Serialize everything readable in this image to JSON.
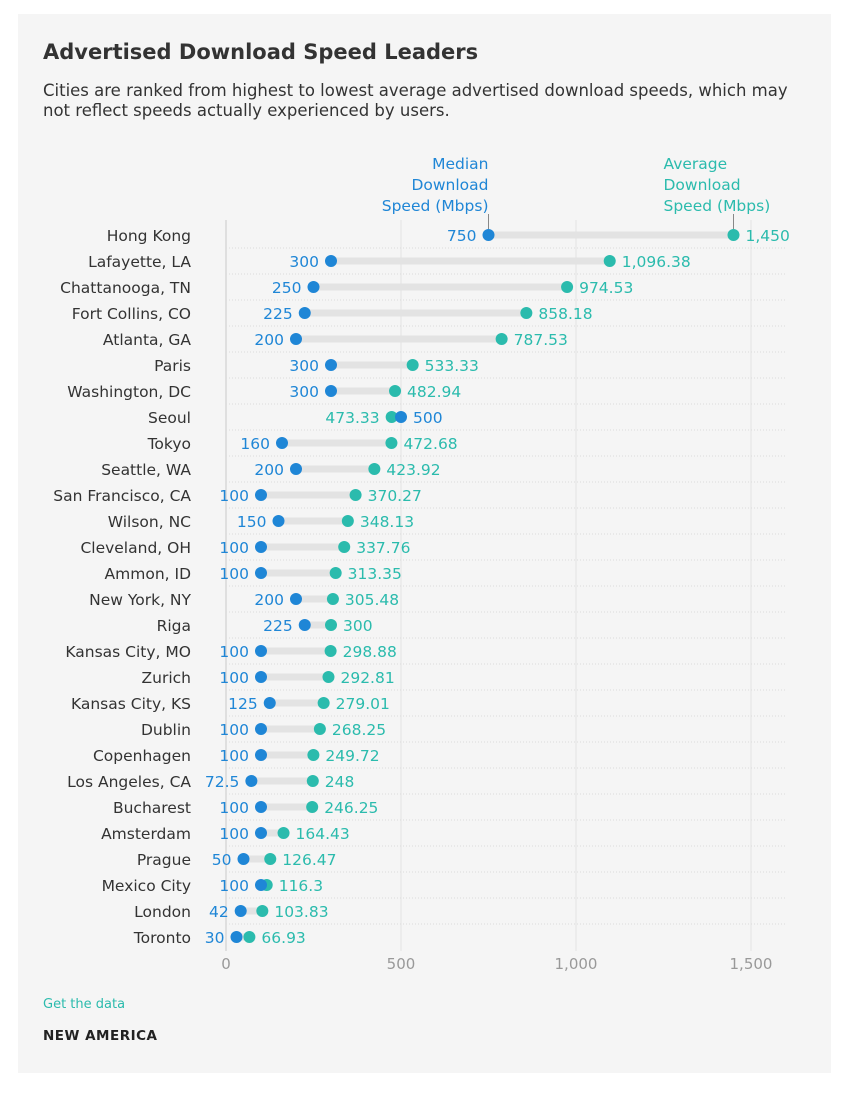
{
  "header": {
    "title": "Advertised Download Speed Leaders",
    "subtitle": "Cities are ranked from highest to lowest average advertised download speeds, which may not reflect speeds actually experienced by users."
  },
  "footer": {
    "link_label": "Get the data",
    "brand": "NEW AMERICA"
  },
  "colors": {
    "median": "#1f86d6",
    "average": "#2bbbad",
    "connector": "#e3e3e3",
    "text": "#333333",
    "axis": "#999999"
  },
  "chart_data": {
    "type": "dumbbell",
    "x_range": [
      0,
      1600
    ],
    "x_ticks": [
      {
        "value": 0,
        "label": "0"
      },
      {
        "value": 500,
        "label": "500"
      },
      {
        "value": 1000,
        "label": "1,000"
      },
      {
        "value": 1500,
        "label": "1,500"
      }
    ],
    "grid": true,
    "series": [
      {
        "key": "median",
        "name": "Median Download Speed (Mbps)",
        "name_lines": [
          "Median",
          "Download",
          "Speed (Mbps)"
        ]
      },
      {
        "key": "average",
        "name": "Average Download Speed (Mbps)",
        "name_lines": [
          "Average",
          "Download",
          "Speed (Mbps)"
        ]
      }
    ],
    "rows": [
      {
        "city": "Hong Kong",
        "median": 750,
        "median_label": "750",
        "average": 1450,
        "average_label": "1,450"
      },
      {
        "city": "Lafayette, LA",
        "median": 300,
        "median_label": "300",
        "average": 1096.38,
        "average_label": "1,096.38"
      },
      {
        "city": "Chattanooga, TN",
        "median": 250,
        "median_label": "250",
        "average": 974.53,
        "average_label": "974.53"
      },
      {
        "city": "Fort Collins, CO",
        "median": 225,
        "median_label": "225",
        "average": 858.18,
        "average_label": "858.18"
      },
      {
        "city": "Atlanta, GA",
        "median": 200,
        "median_label": "200",
        "average": 787.53,
        "average_label": "787.53"
      },
      {
        "city": "Paris",
        "median": 300,
        "median_label": "300",
        "average": 533.33,
        "average_label": "533.33"
      },
      {
        "city": "Washington, DC",
        "median": 300,
        "median_label": "300",
        "average": 482.94,
        "average_label": "482.94"
      },
      {
        "city": "Seoul",
        "median": 500,
        "median_label": "500",
        "average": 473.33,
        "average_label": "473.33"
      },
      {
        "city": "Tokyo",
        "median": 160,
        "median_label": "160",
        "average": 472.68,
        "average_label": "472.68"
      },
      {
        "city": "Seattle, WA",
        "median": 200,
        "median_label": "200",
        "average": 423.92,
        "average_label": "423.92"
      },
      {
        "city": "San Francisco, CA",
        "median": 100,
        "median_label": "100",
        "average": 370.27,
        "average_label": "370.27"
      },
      {
        "city": "Wilson, NC",
        "median": 150,
        "median_label": "150",
        "average": 348.13,
        "average_label": "348.13"
      },
      {
        "city": "Cleveland, OH",
        "median": 100,
        "median_label": "100",
        "average": 337.76,
        "average_label": "337.76"
      },
      {
        "city": "Ammon, ID",
        "median": 100,
        "median_label": "100",
        "average": 313.35,
        "average_label": "313.35"
      },
      {
        "city": "New York, NY",
        "median": 200,
        "median_label": "200",
        "average": 305.48,
        "average_label": "305.48"
      },
      {
        "city": "Riga",
        "median": 225,
        "median_label": "225",
        "average": 300,
        "average_label": "300"
      },
      {
        "city": "Kansas City, MO",
        "median": 100,
        "median_label": "100",
        "average": 298.88,
        "average_label": "298.88"
      },
      {
        "city": "Zurich",
        "median": 100,
        "median_label": "100",
        "average": 292.81,
        "average_label": "292.81"
      },
      {
        "city": "Kansas City, KS",
        "median": 125,
        "median_label": "125",
        "average": 279.01,
        "average_label": "279.01"
      },
      {
        "city": "Dublin",
        "median": 100,
        "median_label": "100",
        "average": 268.25,
        "average_label": "268.25"
      },
      {
        "city": "Copenhagen",
        "median": 100,
        "median_label": "100",
        "average": 249.72,
        "average_label": "249.72"
      },
      {
        "city": "Los Angeles, CA",
        "median": 72.5,
        "median_label": "72.5",
        "average": 248,
        "average_label": "248"
      },
      {
        "city": "Bucharest",
        "median": 100,
        "median_label": "100",
        "average": 246.25,
        "average_label": "246.25"
      },
      {
        "city": "Amsterdam",
        "median": 100,
        "median_label": "100",
        "average": 164.43,
        "average_label": "164.43"
      },
      {
        "city": "Prague",
        "median": 50,
        "median_label": "50",
        "average": 126.47,
        "average_label": "126.47"
      },
      {
        "city": "Mexico City",
        "median": 100,
        "median_label": "100",
        "average": 116.3,
        "average_label": "116.3"
      },
      {
        "city": "London",
        "median": 42,
        "median_label": "42",
        "average": 103.83,
        "average_label": "103.83"
      },
      {
        "city": "Toronto",
        "median": 30,
        "median_label": "30",
        "average": 66.93,
        "average_label": "66.93"
      }
    ]
  }
}
